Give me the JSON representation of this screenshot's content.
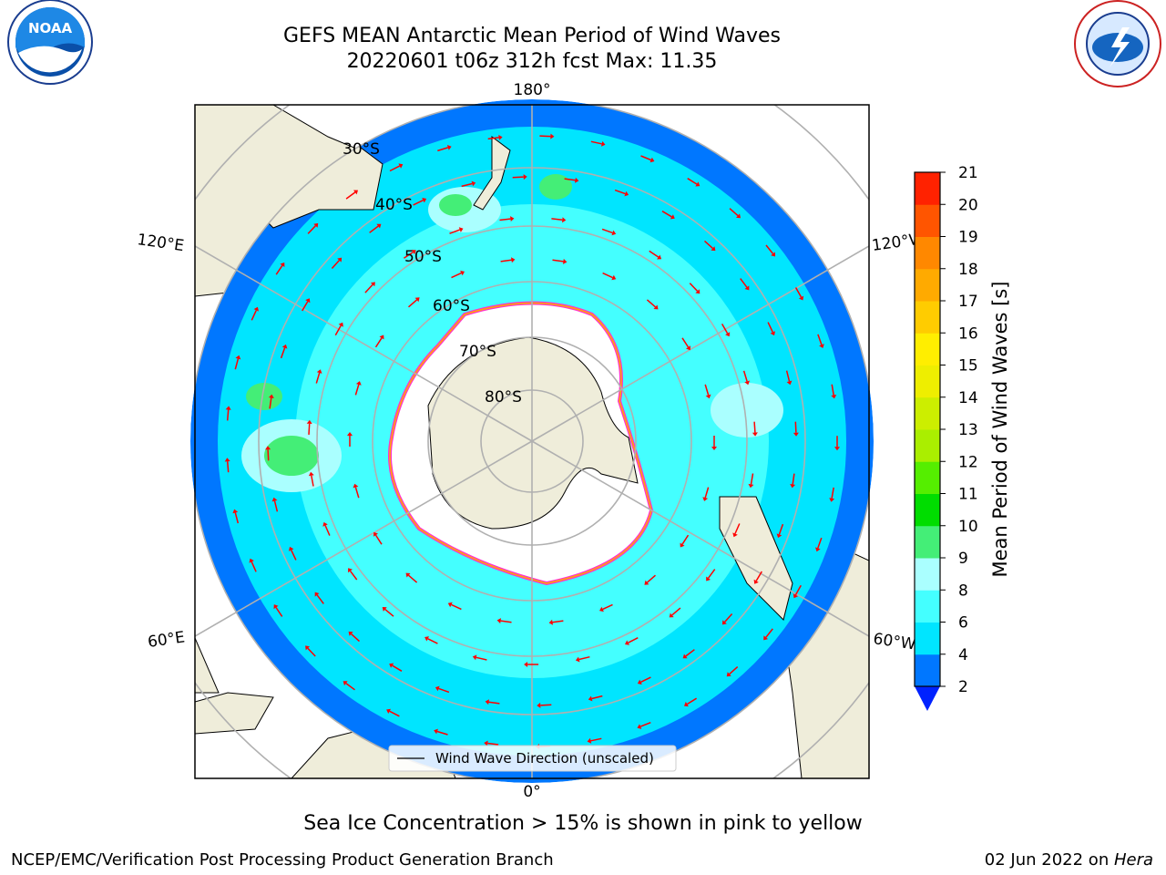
{
  "title": {
    "line1": "GEFS MEAN Antarctic Mean Period of Wind Waves",
    "line2": "20220601 t06z 312h fcst   Max: 11.35"
  },
  "caption": "Sea Ice Concentration > 15% is shown in pink to yellow",
  "credit_left": "NCEP/EMC/Verification Post Processing Product Generation Branch",
  "credit_right": {
    "date": "02 Jun 2022 on ",
    "host": "Hera"
  },
  "logos": {
    "noaa": "noaa-logo",
    "nws": "nws-logo"
  },
  "map": {
    "projection": "south-polar-stereographic",
    "lon_labels": {
      "top": "180°",
      "bottom": "0°",
      "left_upper": "120°E",
      "left_lower": "60°E",
      "right_upper": "120°W",
      "right_lower": "60°W"
    },
    "lat_labels": [
      "30°S",
      "40°S",
      "50°S",
      "60°S",
      "70°S",
      "80°S"
    ],
    "legend": "Wind Wave Direction (unscaled)",
    "colors": {
      "land": "#efedda",
      "ice": "#ffffff",
      "ice_edge": [
        "#ff33cc",
        "#ffaa00"
      ],
      "arrow": "#ff0000",
      "grid": "#b0b0b0"
    }
  },
  "colorbar": {
    "label": "Mean Period of Wind Waves [s]",
    "ticks": [
      "2",
      "4",
      "6",
      "8",
      "9",
      "10",
      "11",
      "12",
      "13",
      "14",
      "15",
      "16",
      "17",
      "18",
      "19",
      "20",
      "21"
    ],
    "colors": [
      "#0077ff",
      "#00e5ff",
      "#44ffff",
      "#aaffff",
      "#44ee77",
      "#00dd00",
      "#55ee00",
      "#aaee00",
      "#ccee00",
      "#eeee00",
      "#ffee00",
      "#ffcc00",
      "#ffaa00",
      "#ff8800",
      "#ff5500",
      "#ff2200"
    ],
    "under_color": "#0022ff"
  }
}
